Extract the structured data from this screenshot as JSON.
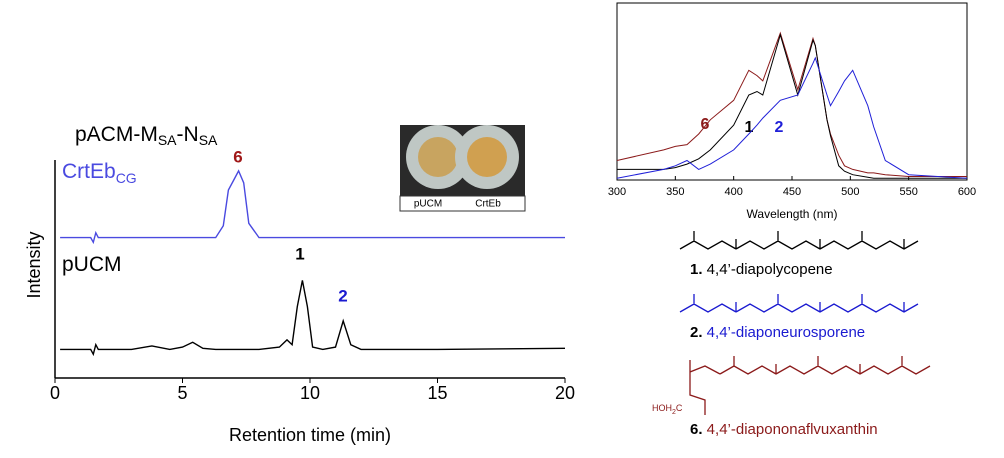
{
  "chart_data": [
    {
      "type": "line",
      "title": [
        "pACM-M",
        "SA",
        "-N",
        "SA"
      ],
      "x_label": "Retention time (min)",
      "y_label": "Intensity",
      "xlim": [
        0,
        20
      ],
      "xticks": [
        0,
        5,
        10,
        15,
        20
      ],
      "ylim": [
        0,
        100
      ],
      "x": [
        0.2,
        1.4,
        1.5,
        1.6,
        1.7,
        3.0,
        3.8,
        4.5,
        5.0,
        5.4,
        5.8,
        6.3,
        6.6,
        6.8,
        7.0,
        7.2,
        7.4,
        7.6,
        8.0,
        8.8,
        9.1,
        9.3,
        9.5,
        9.7,
        9.9,
        10.1,
        10.5,
        11.0,
        11.3,
        11.6,
        12.0,
        15.0,
        20.0
      ],
      "series": [
        {
          "name": "CrtEb",
          "name_sub": "CG",
          "color": "#4a4ae0",
          "values": [
            59,
            59,
            57,
            61,
            59,
            59,
            59,
            59,
            59,
            59,
            59,
            59,
            64,
            79,
            83,
            87,
            82,
            65,
            59,
            59,
            59,
            59,
            59,
            59,
            59,
            59,
            59,
            59,
            59,
            59,
            59,
            59,
            59
          ]
        },
        {
          "name": "pUCM",
          "color": "#000000",
          "values": [
            12,
            12,
            10,
            14,
            12,
            12,
            13.5,
            12,
            13,
            15,
            12.5,
            12,
            12,
            12,
            12,
            12,
            12,
            12,
            12,
            13,
            16,
            14,
            30,
            41,
            30,
            13,
            12,
            13,
            24,
            14,
            12,
            12,
            12.5
          ]
        }
      ],
      "annotations": [
        {
          "text": "6",
          "color": "#a01818"
        },
        {
          "text": "1",
          "color": "#000000"
        },
        {
          "text": "2",
          "color": "#1a1ad0"
        }
      ]
    },
    {
      "type": "line",
      "x_label": "Wavelength (nm)",
      "xlim": [
        300,
        600
      ],
      "xticks": [
        300,
        350,
        400,
        450,
        500,
        550,
        600
      ],
      "ylim": [
        0,
        100
      ],
      "x": [
        300,
        340,
        350,
        360,
        370,
        380,
        400,
        413,
        420,
        425,
        440,
        455,
        468,
        470,
        480,
        483,
        490,
        495,
        502,
        515,
        520,
        530,
        550,
        600
      ],
      "series": [
        {
          "name": "6",
          "color": "#8b1a1a",
          "values": [
            11,
            17,
            19,
            20,
            26,
            34,
            45,
            62,
            59,
            56,
            83,
            51,
            80,
            76,
            34,
            26,
            14,
            8,
            6,
            4,
            4,
            3,
            2,
            2
          ]
        },
        {
          "name": "1",
          "color": "#000000",
          "values": [
            6,
            6,
            7,
            9,
            12,
            17,
            31,
            48,
            50,
            48,
            82,
            48,
            79,
            76,
            34,
            25,
            8,
            5,
            3,
            1.5,
            1,
            1,
            1,
            1
          ]
        },
        {
          "name": "2",
          "color": "#2020d8",
          "values": [
            1,
            6,
            8,
            11,
            6,
            9,
            17,
            26,
            31,
            35,
            45,
            48,
            66,
            69,
            48,
            42,
            50,
            56,
            62,
            42,
            30,
            11,
            3,
            1
          ]
        }
      ]
    }
  ],
  "photo": {
    "labels": [
      "pUCM",
      "CrtEb"
    ]
  },
  "compounds": [
    {
      "number": "1.",
      "name": " 4,4’-diapolycopene",
      "color": "#000000"
    },
    {
      "number": "2.",
      "name": " 4,4’-diaponeurosporene",
      "color": "#1a1ad0"
    },
    {
      "number": "6.",
      "name": " 4,4’-diapononaflvuxanthin",
      "color": "#8b1a1a",
      "group": [
        "HOH",
        "2",
        "C"
      ]
    }
  ]
}
